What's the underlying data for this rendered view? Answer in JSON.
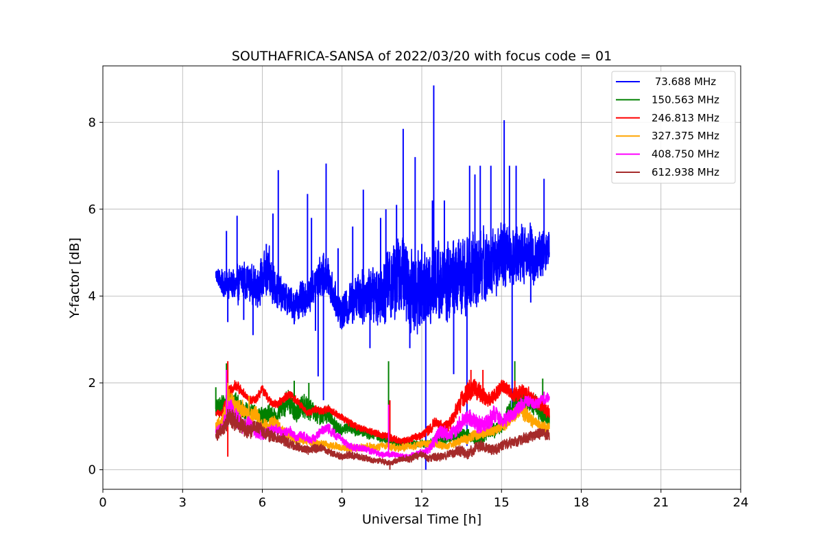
{
  "chart_data": {
    "type": "line",
    "title": "SOUTHAFRICA-SANSA of 2022/03/20 with focus code = 01",
    "xlabel": "Universal Time [h]",
    "ylabel": "Y-factor [dB]",
    "xlim": [
      0,
      24
    ],
    "ylim": [
      -0.45,
      9.3
    ],
    "xticks": [
      "0",
      "3",
      "6",
      "9",
      "12",
      "15",
      "18",
      "21",
      "24"
    ],
    "yticks": [
      "0",
      "2",
      "4",
      "6",
      "8"
    ],
    "grid": true,
    "legend_position": "top-right",
    "series": [
      {
        "name": " 73.688 MHz",
        "color": "#0000ff",
        "x": [
          4.25,
          4.5,
          4.75,
          5.0,
          5.25,
          5.5,
          5.75,
          6.0,
          6.25,
          6.5,
          6.75,
          7.0,
          7.25,
          7.5,
          7.75,
          8.0,
          8.25,
          8.5,
          8.75,
          9.0,
          9.25,
          9.5,
          9.75,
          10.0,
          10.25,
          10.5,
          10.75,
          11.0,
          11.25,
          11.5,
          11.75,
          12.0,
          12.25,
          12.5,
          12.75,
          13.0,
          13.25,
          13.5,
          13.75,
          14.0,
          14.25,
          14.5,
          14.75,
          15.0,
          15.25,
          15.5,
          15.75,
          16.0,
          16.25,
          16.5,
          16.8
        ],
        "y": [
          4.5,
          4.3,
          4.3,
          4.2,
          4.4,
          4.3,
          4.2,
          4.4,
          4.5,
          4.2,
          4.0,
          3.9,
          3.8,
          3.9,
          4.0,
          4.3,
          4.5,
          4.4,
          3.9,
          3.6,
          3.8,
          4.0,
          4.0,
          4.1,
          4.0,
          4.2,
          4.3,
          4.4,
          4.5,
          4.2,
          4.1,
          4.1,
          4.2,
          4.4,
          4.3,
          4.3,
          4.5,
          4.4,
          4.5,
          4.6,
          4.7,
          4.7,
          4.8,
          4.9,
          5.0,
          4.9,
          5.0,
          5.1,
          4.9,
          5.0,
          5.1
        ],
        "spread": [
          0.2,
          0.35,
          0.45,
          0.5,
          0.55,
          0.5,
          0.55,
          0.65,
          0.7,
          0.6,
          0.45,
          0.45,
          0.45,
          0.5,
          0.45,
          0.5,
          0.6,
          0.55,
          0.45,
          0.45,
          0.55,
          0.7,
          0.75,
          0.75,
          0.8,
          0.9,
          1.05,
          1.15,
          1.2,
          1.15,
          1.1,
          1.05,
          1.1,
          1.1,
          1.05,
          1.1,
          1.1,
          1.1,
          1.1,
          1.1,
          1.05,
          1.0,
          0.95,
          0.9,
          0.9,
          0.85,
          0.8,
          0.8,
          0.75,
          0.7,
          0.6
        ],
        "spikes": [
          [
            4.65,
            5.5
          ],
          [
            4.7,
            3.4
          ],
          [
            5.05,
            5.85
          ],
          [
            5.3,
            3.45
          ],
          [
            5.65,
            3.1
          ],
          [
            6.15,
            5.2
          ],
          [
            6.4,
            5.9
          ],
          [
            6.6,
            6.9
          ],
          [
            6.95,
            3.6
          ],
          [
            7.2,
            3.35
          ],
          [
            7.7,
            6.35
          ],
          [
            7.85,
            5.8
          ],
          [
            8.0,
            3.2
          ],
          [
            8.1,
            2.15
          ],
          [
            8.3,
            1.6
          ],
          [
            8.4,
            7.05
          ],
          [
            8.85,
            5.1
          ],
          [
            9.4,
            5.6
          ],
          [
            9.8,
            6.45
          ],
          [
            10.05,
            2.8
          ],
          [
            10.45,
            5.8
          ],
          [
            10.65,
            6.0
          ],
          [
            11.05,
            6.1
          ],
          [
            11.3,
            7.85
          ],
          [
            11.55,
            2.8
          ],
          [
            11.75,
            7.2
          ],
          [
            12.0,
            5.2
          ],
          [
            12.15,
            0.0
          ],
          [
            12.4,
            6.2
          ],
          [
            12.45,
            8.85
          ],
          [
            12.85,
            6.2
          ],
          [
            13.2,
            2.2
          ],
          [
            13.7,
            0.55
          ],
          [
            13.8,
            7.0
          ],
          [
            14.0,
            6.8
          ],
          [
            14.2,
            7.0
          ],
          [
            14.6,
            7.0
          ],
          [
            14.85,
            5.0
          ],
          [
            15.1,
            8.05
          ],
          [
            15.3,
            7.0
          ],
          [
            15.4,
            1.15
          ],
          [
            15.55,
            7.0
          ],
          [
            16.1,
            3.85
          ],
          [
            16.6,
            6.7
          ]
        ]
      },
      {
        "name": "150.563 MHz",
        "color": "#008000",
        "x": [
          4.25,
          4.5,
          4.75,
          5.0,
          5.25,
          5.5,
          5.75,
          6.0,
          6.25,
          6.5,
          6.75,
          7.0,
          7.25,
          7.5,
          7.75,
          8.0,
          8.25,
          8.5,
          8.75,
          9.0,
          9.25,
          9.5,
          9.75,
          10.0,
          10.25,
          10.5,
          10.75,
          11.0,
          11.25,
          11.5,
          11.75,
          12.0,
          12.25,
          12.5,
          12.75,
          13.0,
          13.25,
          13.5,
          13.75,
          14.0,
          14.25,
          14.5,
          14.75,
          15.0,
          15.25,
          15.5,
          15.75,
          16.0,
          16.25,
          16.5,
          16.8
        ],
        "y": [
          1.4,
          1.5,
          1.6,
          1.5,
          1.4,
          1.3,
          1.3,
          1.2,
          1.3,
          1.2,
          1.4,
          1.6,
          1.3,
          1.5,
          1.4,
          1.3,
          1.2,
          1.3,
          1.0,
          0.9,
          1.0,
          0.9,
          0.9,
          0.8,
          0.8,
          0.7,
          0.7,
          0.6,
          0.6,
          0.6,
          0.6,
          0.6,
          0.6,
          0.7,
          0.7,
          0.7,
          0.8,
          0.8,
          0.8,
          0.7,
          0.7,
          0.9,
          0.9,
          1.0,
          1.3,
          1.5,
          1.6,
          1.6,
          1.5,
          1.3,
          1.2
        ],
        "spread": [
          0.25,
          0.3,
          0.3,
          0.3,
          0.25,
          0.25,
          0.25,
          0.25,
          0.25,
          0.25,
          0.3,
          0.35,
          0.3,
          0.35,
          0.3,
          0.25,
          0.25,
          0.25,
          0.2,
          0.15,
          0.15,
          0.15,
          0.15,
          0.12,
          0.12,
          0.12,
          0.1,
          0.1,
          0.1,
          0.1,
          0.1,
          0.1,
          0.1,
          0.12,
          0.12,
          0.12,
          0.15,
          0.15,
          0.15,
          0.15,
          0.15,
          0.2,
          0.2,
          0.2,
          0.25,
          0.3,
          0.3,
          0.3,
          0.3,
          0.3,
          0.25
        ],
        "spikes": [
          [
            4.25,
            1.9
          ],
          [
            4.65,
            2.45
          ],
          [
            7.2,
            2.05
          ],
          [
            7.75,
            2.0
          ],
          [
            10.75,
            2.5
          ],
          [
            15.5,
            2.5
          ],
          [
            16.55,
            2.1
          ]
        ]
      },
      {
        "name": "246.813 MHz",
        "color": "#ff0000",
        "x": [
          4.25,
          4.5,
          4.75,
          5.0,
          5.25,
          5.5,
          5.75,
          6.0,
          6.25,
          6.5,
          6.75,
          7.0,
          7.25,
          7.5,
          7.75,
          8.0,
          8.25,
          8.5,
          8.75,
          9.0,
          9.25,
          9.5,
          9.75,
          10.0,
          10.25,
          10.5,
          10.75,
          11.0,
          11.25,
          11.5,
          11.75,
          12.0,
          12.25,
          12.5,
          12.75,
          13.0,
          13.25,
          13.5,
          13.75,
          14.0,
          14.25,
          14.5,
          14.75,
          15.0,
          15.25,
          15.5,
          15.75,
          16.0,
          16.25,
          16.5,
          16.8
        ],
        "y": [
          1.3,
          1.3,
          1.8,
          1.95,
          1.8,
          1.6,
          1.6,
          1.85,
          1.6,
          1.5,
          1.6,
          1.75,
          1.6,
          1.45,
          1.3,
          1.4,
          1.35,
          1.4,
          1.3,
          1.2,
          1.1,
          1.0,
          0.95,
          0.9,
          0.85,
          0.8,
          0.75,
          0.7,
          0.65,
          0.7,
          0.75,
          0.8,
          0.9,
          1.1,
          1.0,
          1.0,
          1.3,
          1.6,
          1.8,
          1.9,
          1.7,
          1.6,
          1.7,
          1.9,
          1.85,
          1.7,
          1.8,
          1.75,
          1.6,
          1.5,
          1.3
        ],
        "spread": [
          0.1,
          0.12,
          0.15,
          0.15,
          0.12,
          0.12,
          0.12,
          0.12,
          0.12,
          0.12,
          0.12,
          0.12,
          0.12,
          0.1,
          0.1,
          0.1,
          0.1,
          0.1,
          0.1,
          0.1,
          0.1,
          0.1,
          0.1,
          0.1,
          0.1,
          0.1,
          0.1,
          0.1,
          0.1,
          0.1,
          0.1,
          0.12,
          0.15,
          0.15,
          0.15,
          0.15,
          0.2,
          0.25,
          0.3,
          0.3,
          0.25,
          0.2,
          0.2,
          0.2,
          0.2,
          0.2,
          0.2,
          0.2,
          0.2,
          0.2,
          0.2
        ],
        "spikes": [
          [
            4.7,
            2.5
          ],
          [
            4.7,
            0.3
          ],
          [
            10.8,
            1.6
          ],
          [
            13.85,
            2.3
          ],
          [
            14.3,
            2.3
          ],
          [
            15.5,
            2.05
          ]
        ]
      },
      {
        "name": "327.375 MHz",
        "color": "#ffa500",
        "x": [
          4.25,
          4.5,
          4.75,
          5.0,
          5.25,
          5.5,
          5.75,
          6.0,
          6.25,
          6.5,
          6.75,
          7.0,
          7.25,
          7.5,
          7.75,
          8.0,
          8.25,
          8.5,
          8.75,
          9.0,
          9.25,
          9.5,
          9.75,
          10.0,
          10.25,
          10.5,
          10.75,
          11.0,
          11.25,
          11.5,
          11.75,
          12.0,
          12.25,
          12.5,
          12.75,
          13.0,
          13.25,
          13.5,
          13.75,
          14.0,
          14.25,
          14.5,
          14.75,
          15.0,
          15.25,
          15.5,
          15.75,
          16.0,
          16.25,
          16.5,
          16.8
        ],
        "y": [
          1.0,
          1.1,
          1.6,
          1.4,
          1.4,
          1.2,
          1.3,
          1.0,
          1.0,
          1.1,
          0.9,
          0.8,
          0.7,
          0.7,
          0.65,
          0.6,
          0.6,
          0.55,
          0.55,
          0.5,
          0.5,
          0.5,
          0.5,
          0.55,
          0.5,
          0.55,
          0.55,
          0.5,
          0.5,
          0.55,
          0.55,
          0.6,
          0.6,
          0.6,
          0.55,
          0.55,
          0.6,
          0.7,
          0.7,
          0.8,
          0.8,
          0.9,
          0.9,
          1.0,
          1.1,
          1.3,
          1.4,
          1.2,
          1.1,
          1.0,
          0.95
        ],
        "spread": [
          0.15,
          0.2,
          0.3,
          0.3,
          0.25,
          0.2,
          0.25,
          0.2,
          0.2,
          0.2,
          0.15,
          0.15,
          0.12,
          0.12,
          0.1,
          0.1,
          0.1,
          0.1,
          0.1,
          0.1,
          0.1,
          0.1,
          0.1,
          0.1,
          0.1,
          0.1,
          0.1,
          0.1,
          0.1,
          0.1,
          0.1,
          0.1,
          0.1,
          0.1,
          0.1,
          0.1,
          0.1,
          0.12,
          0.12,
          0.15,
          0.15,
          0.15,
          0.15,
          0.15,
          0.15,
          0.2,
          0.25,
          0.2,
          0.15,
          0.15,
          0.15
        ],
        "spikes": [
          [
            4.7,
            2.0
          ],
          [
            5.5,
            1.7
          ]
        ]
      },
      {
        "name": "408.750 MHz",
        "color": "#ff00ff",
        "x": [
          4.25,
          4.5,
          4.75,
          5.0,
          5.25,
          5.5,
          5.75,
          6.0,
          6.25,
          6.5,
          6.75,
          7.0,
          7.25,
          7.5,
          7.75,
          8.0,
          8.25,
          8.5,
          8.75,
          9.0,
          9.25,
          9.5,
          9.75,
          10.0,
          10.25,
          10.5,
          10.75,
          11.0,
          11.25,
          11.5,
          11.75,
          12.0,
          12.25,
          12.5,
          12.75,
          13.0,
          13.25,
          13.5,
          13.75,
          14.0,
          14.25,
          14.5,
          14.75,
          15.0,
          15.25,
          15.5,
          15.75,
          16.0,
          16.25,
          16.5,
          16.8
        ],
        "y": [
          0.9,
          0.95,
          1.4,
          1.2,
          1.0,
          1.1,
          0.85,
          0.8,
          0.9,
          0.95,
          0.8,
          0.9,
          0.75,
          0.8,
          0.7,
          0.75,
          0.9,
          0.95,
          0.8,
          0.7,
          0.55,
          0.5,
          0.5,
          0.45,
          0.4,
          0.35,
          0.35,
          0.35,
          0.3,
          0.3,
          0.35,
          0.4,
          0.45,
          0.7,
          0.9,
          0.8,
          0.9,
          1.1,
          1.2,
          1.1,
          1.0,
          1.1,
          1.3,
          1.1,
          1.2,
          1.3,
          1.5,
          1.6,
          1.5,
          1.6,
          1.65
        ],
        "spread": [
          0.12,
          0.15,
          0.3,
          0.3,
          0.2,
          0.2,
          0.15,
          0.15,
          0.15,
          0.15,
          0.15,
          0.15,
          0.12,
          0.12,
          0.12,
          0.12,
          0.15,
          0.15,
          0.12,
          0.1,
          0.1,
          0.1,
          0.1,
          0.1,
          0.08,
          0.08,
          0.08,
          0.08,
          0.08,
          0.08,
          0.08,
          0.1,
          0.12,
          0.2,
          0.2,
          0.2,
          0.2,
          0.25,
          0.25,
          0.25,
          0.25,
          0.25,
          0.25,
          0.2,
          0.2,
          0.2,
          0.2,
          0.15,
          0.15,
          0.15,
          0.15
        ],
        "spikes": [
          [
            4.65,
            2.3
          ],
          [
            10.75,
            1.5
          ],
          [
            16.6,
            1.8
          ]
        ]
      },
      {
        "name": "612.938 MHz",
        "color": "#a52a2a",
        "x": [
          4.25,
          4.5,
          4.75,
          5.0,
          5.25,
          5.5,
          5.75,
          6.0,
          6.25,
          6.5,
          6.75,
          7.0,
          7.25,
          7.5,
          7.75,
          8.0,
          8.25,
          8.5,
          8.75,
          9.0,
          9.25,
          9.5,
          9.75,
          10.0,
          10.25,
          10.5,
          10.75,
          11.0,
          11.25,
          11.5,
          11.75,
          12.0,
          12.25,
          12.5,
          12.75,
          13.0,
          13.25,
          13.5,
          13.75,
          14.0,
          14.25,
          14.5,
          14.75,
          15.0,
          15.25,
          15.5,
          15.75,
          16.0,
          16.25,
          16.5,
          16.8
        ],
        "y": [
          0.8,
          0.9,
          1.2,
          1.1,
          1.0,
          0.85,
          1.0,
          0.9,
          0.8,
          0.75,
          0.7,
          0.6,
          0.55,
          0.5,
          0.45,
          0.5,
          0.5,
          0.4,
          0.35,
          0.3,
          0.35,
          0.3,
          0.3,
          0.25,
          0.2,
          0.2,
          0.15,
          0.2,
          0.25,
          0.25,
          0.3,
          0.35,
          0.25,
          0.3,
          0.3,
          0.35,
          0.4,
          0.45,
          0.35,
          0.5,
          0.55,
          0.5,
          0.45,
          0.55,
          0.6,
          0.65,
          0.7,
          0.75,
          0.8,
          0.85,
          0.8
        ],
        "spread": [
          0.15,
          0.2,
          0.25,
          0.25,
          0.25,
          0.2,
          0.2,
          0.2,
          0.2,
          0.15,
          0.15,
          0.15,
          0.12,
          0.12,
          0.12,
          0.12,
          0.12,
          0.1,
          0.1,
          0.1,
          0.1,
          0.1,
          0.1,
          0.08,
          0.08,
          0.08,
          0.08,
          0.08,
          0.08,
          0.1,
          0.1,
          0.1,
          0.1,
          0.12,
          0.12,
          0.12,
          0.15,
          0.15,
          0.15,
          0.15,
          0.15,
          0.15,
          0.15,
          0.15,
          0.15,
          0.15,
          0.15,
          0.15,
          0.15,
          0.15,
          0.15
        ],
        "spikes": [
          [
            4.7,
            1.4
          ],
          [
            10.8,
            0.0
          ]
        ]
      }
    ]
  }
}
